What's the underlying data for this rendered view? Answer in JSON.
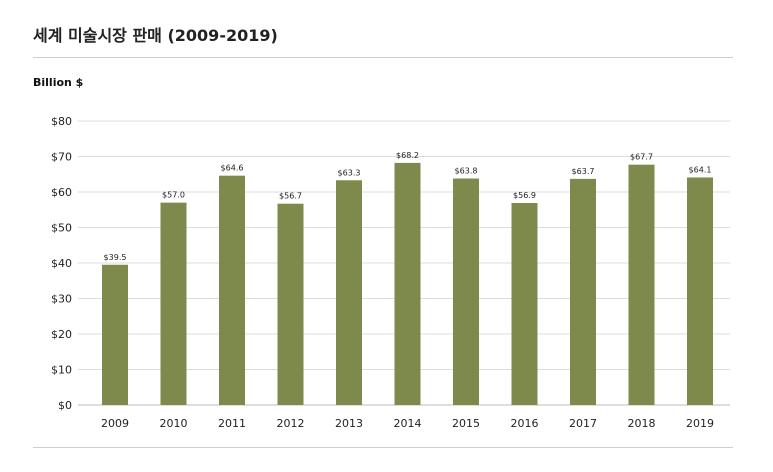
{
  "header": {
    "title": "세계 미술시장 판매 (2009-2019)"
  },
  "chart_data": {
    "type": "bar",
    "title": "세계 미술시장 판매 (2009-2019)",
    "ylabel": "Billion $",
    "xlabel": "",
    "categories": [
      "2009",
      "2010",
      "2011",
      "2012",
      "2013",
      "2014",
      "2015",
      "2016",
      "2017",
      "2018",
      "2019"
    ],
    "values": [
      39.5,
      57.0,
      64.6,
      56.7,
      63.3,
      68.2,
      63.8,
      56.9,
      63.7,
      67.7,
      64.1
    ],
    "value_labels": [
      "$39.5",
      "$57.0",
      "$64.6",
      "$56.7",
      "$63.3",
      "$68.2",
      "$63.8",
      "$56.9",
      "$63.7",
      "$67.7",
      "$64.1"
    ],
    "ylim": [
      0,
      80
    ],
    "yticks": [
      0,
      10,
      20,
      30,
      40,
      50,
      60,
      70,
      80
    ],
    "ytick_labels": [
      "$0",
      "$10",
      "$20",
      "$30",
      "$40",
      "$50",
      "$60",
      "$70",
      "$80"
    ],
    "grid": true,
    "legend": "none",
    "bar_color": "#7e8a4c",
    "grid_color": "#dcdcdc"
  }
}
